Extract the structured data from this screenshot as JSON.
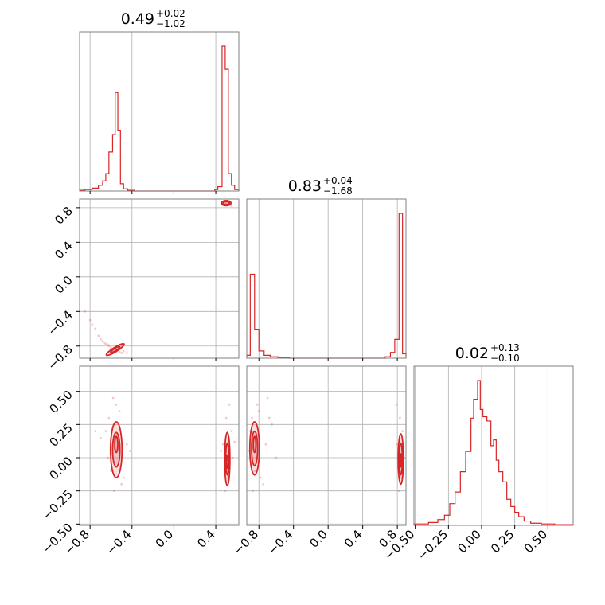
{
  "colors": {
    "accent": "#d62728",
    "grid": "#b0b0b0",
    "frame": "#808080"
  },
  "titles": [
    {
      "value": "0.49",
      "plus": "+0.02",
      "minus": "−1.02"
    },
    {
      "value": "0.83",
      "plus": "+0.04",
      "minus": "−1.68"
    },
    {
      "value": "0.02",
      "plus": "+0.13",
      "minus": "−0.10"
    }
  ],
  "chart_data": {
    "type": "corner",
    "grid": true,
    "parameters": [
      {
        "range": [
          -0.9,
          0.62
        ],
        "ticks": [
          -0.8,
          -0.4,
          0.0,
          0.4
        ],
        "tick_labels": [
          "−0.8",
          "−0.4",
          "0.0",
          "0.4"
        ]
      },
      {
        "range": [
          -0.94,
          0.9
        ],
        "ticks": [
          -0.8,
          -0.4,
          0.0,
          0.4,
          0.8
        ],
        "tick_labels": [
          "−0.8",
          "−0.4",
          "0.0",
          "0.4",
          "0.8"
        ]
      },
      {
        "range": [
          -0.51,
          0.69
        ],
        "ticks": [
          -0.5,
          -0.25,
          0.0,
          0.25,
          0.5
        ],
        "tick_labels": [
          "−0.50",
          "−0.25",
          "0.00",
          "0.25",
          "0.50"
        ]
      }
    ],
    "histograms": [
      {
        "param": 0,
        "bins": [
          {
            "x": [
              -0.9,
              -0.85
            ],
            "h": 0.005
          },
          {
            "x": [
              -0.85,
              -0.78
            ],
            "h": 0.01
          },
          {
            "x": [
              -0.78,
              -0.72
            ],
            "h": 0.02
          },
          {
            "x": [
              -0.72,
              -0.68
            ],
            "h": 0.04
          },
          {
            "x": [
              -0.68,
              -0.65
            ],
            "h": 0.07
          },
          {
            "x": [
              -0.65,
              -0.62
            ],
            "h": 0.12
          },
          {
            "x": [
              -0.62,
              -0.585
            ],
            "h": 0.27
          },
          {
            "x": [
              -0.585,
              -0.56
            ],
            "h": 0.39
          },
          {
            "x": [
              -0.56,
              -0.535
            ],
            "h": 0.68
          },
          {
            "x": [
              -0.535,
              -0.51
            ],
            "h": 0.42
          },
          {
            "x": [
              -0.51,
              -0.48
            ],
            "h": 0.05
          },
          {
            "x": [
              -0.48,
              -0.44
            ],
            "h": 0.015
          },
          {
            "x": [
              -0.44,
              -0.38
            ],
            "h": 0.005
          },
          {
            "x": [
              -0.38,
              0.39
            ],
            "h": 0.0
          },
          {
            "x": [
              0.39,
              0.42
            ],
            "h": 0.01
          },
          {
            "x": [
              0.42,
              0.46
            ],
            "h": 0.03
          },
          {
            "x": [
              0.46,
              0.49
            ],
            "h": 1.0
          },
          {
            "x": [
              0.49,
              0.52
            ],
            "h": 0.84
          },
          {
            "x": [
              0.52,
              0.55
            ],
            "h": 0.12
          },
          {
            "x": [
              0.55,
              0.58
            ],
            "h": 0.04
          },
          {
            "x": [
              0.58,
              0.62
            ],
            "h": 0.01
          }
        ]
      },
      {
        "param": 1,
        "bins": [
          {
            "x": [
              -0.94,
              -0.9
            ],
            "h": 0.02
          },
          {
            "x": [
              -0.9,
              -0.85
            ],
            "h": 0.58
          },
          {
            "x": [
              -0.85,
              -0.8
            ],
            "h": 0.2
          },
          {
            "x": [
              -0.8,
              -0.74
            ],
            "h": 0.05
          },
          {
            "x": [
              -0.74,
              -0.67
            ],
            "h": 0.02
          },
          {
            "x": [
              -0.67,
              -0.58
            ],
            "h": 0.01
          },
          {
            "x": [
              -0.58,
              -0.45
            ],
            "h": 0.005
          },
          {
            "x": [
              -0.45,
              0.66
            ],
            "h": 0.0
          },
          {
            "x": [
              0.66,
              0.72
            ],
            "h": 0.01
          },
          {
            "x": [
              0.72,
              0.77
            ],
            "h": 0.04
          },
          {
            "x": [
              0.77,
              0.82
            ],
            "h": 0.13
          },
          {
            "x": [
              0.82,
              0.86
            ],
            "h": 1.0
          },
          {
            "x": [
              0.86,
              0.9
            ],
            "h": 0.03
          }
        ]
      },
      {
        "param": 2,
        "bins": [
          {
            "x": [
              -0.51,
              -0.4
            ],
            "h": 0.01
          },
          {
            "x": [
              -0.4,
              -0.33
            ],
            "h": 0.02
          },
          {
            "x": [
              -0.33,
              -0.28
            ],
            "h": 0.04
          },
          {
            "x": [
              -0.28,
              -0.24
            ],
            "h": 0.07
          },
          {
            "x": [
              -0.24,
              -0.2
            ],
            "h": 0.15
          },
          {
            "x": [
              -0.2,
              -0.16
            ],
            "h": 0.23
          },
          {
            "x": [
              -0.16,
              -0.12
            ],
            "h": 0.37
          },
          {
            "x": [
              -0.12,
              -0.08
            ],
            "h": 0.51
          },
          {
            "x": [
              -0.08,
              -0.06
            ],
            "h": 0.74
          },
          {
            "x": [
              -0.06,
              -0.03
            ],
            "h": 0.87
          },
          {
            "x": [
              -0.03,
              -0.01
            ],
            "h": 1.0
          },
          {
            "x": [
              -0.01,
              0.01
            ],
            "h": 0.8
          },
          {
            "x": [
              0.01,
              0.04
            ],
            "h": 0.75
          },
          {
            "x": [
              0.04,
              0.07
            ],
            "h": 0.72
          },
          {
            "x": [
              0.07,
              0.09
            ],
            "h": 0.55
          },
          {
            "x": [
              0.09,
              0.11
            ],
            "h": 0.59
          },
          {
            "x": [
              0.11,
              0.13
            ],
            "h": 0.45
          },
          {
            "x": [
              0.13,
              0.16
            ],
            "h": 0.37
          },
          {
            "x": [
              0.16,
              0.19
            ],
            "h": 0.3
          },
          {
            "x": [
              0.19,
              0.22
            ],
            "h": 0.18
          },
          {
            "x": [
              0.22,
              0.25
            ],
            "h": 0.13
          },
          {
            "x": [
              0.25,
              0.28
            ],
            "h": 0.09
          },
          {
            "x": [
              0.28,
              0.32
            ],
            "h": 0.06
          },
          {
            "x": [
              0.32,
              0.37
            ],
            "h": 0.03
          },
          {
            "x": [
              0.37,
              0.45
            ],
            "h": 0.015
          },
          {
            "x": [
              0.45,
              0.55
            ],
            "h": 0.01
          },
          {
            "x": [
              0.55,
              0.69
            ],
            "h": 0.005
          }
        ]
      }
    ],
    "scatter": [
      {
        "px": 0,
        "py": 1,
        "points": [
          [
            0.5,
            0.85
          ],
          [
            0.49,
            0.86
          ],
          [
            0.52,
            0.84
          ],
          [
            0.47,
            0.83
          ],
          [
            0.53,
            0.86
          ],
          [
            0.55,
            0.82
          ],
          [
            0.5,
            0.88
          ],
          [
            0.46,
            0.85
          ],
          [
            -0.55,
            -0.86
          ],
          [
            -0.52,
            -0.87
          ],
          [
            -0.58,
            -0.84
          ],
          [
            -0.6,
            -0.82
          ],
          [
            -0.62,
            -0.8
          ],
          [
            -0.65,
            -0.78
          ],
          [
            -0.68,
            -0.74
          ],
          [
            -0.7,
            -0.72
          ],
          [
            -0.72,
            -0.68
          ],
          [
            -0.75,
            -0.6
          ],
          [
            -0.78,
            -0.55
          ],
          [
            -0.8,
            -0.5
          ],
          [
            -0.85,
            -0.4
          ],
          [
            -0.5,
            -0.88
          ],
          [
            -0.48,
            -0.86
          ],
          [
            -0.45,
            -0.88
          ],
          [
            -0.63,
            -0.78
          ],
          [
            -0.66,
            -0.76
          ],
          [
            -0.57,
            -0.83
          ]
        ],
        "contours": [
          {
            "center": [
              0.5,
              0.853
            ],
            "radii": [
              0.045,
              0.03
            ],
            "angle": 0
          },
          {
            "center": [
              0.5,
              0.853
            ],
            "radii": [
              0.03,
              0.018
            ],
            "angle": 0
          },
          {
            "center": [
              -0.56,
              -0.84
            ],
            "radii": [
              0.1,
              0.025
            ],
            "angle": 32
          },
          {
            "center": [
              -0.56,
              -0.84
            ],
            "radii": [
              0.05,
              0.014
            ],
            "angle": 32
          }
        ]
      },
      {
        "px": 0,
        "py": 2,
        "points": [
          [
            -0.55,
            0.4
          ],
          [
            -0.62,
            0.3
          ],
          [
            -0.5,
            -0.2
          ],
          [
            -0.58,
            0.45
          ],
          [
            -0.65,
            0.2
          ],
          [
            -0.48,
            -0.15
          ],
          [
            -0.6,
            -0.1
          ],
          [
            -0.45,
            0.1
          ],
          [
            -0.7,
            0.15
          ],
          [
            -0.52,
            0.35
          ],
          [
            -0.57,
            -0.25
          ],
          [
            -0.63,
            0.0
          ],
          [
            -0.42,
            0.05
          ],
          [
            -0.75,
            0.2
          ],
          [
            0.5,
            0.3
          ],
          [
            0.52,
            -0.15
          ],
          [
            0.47,
            0.1
          ],
          [
            0.55,
            0.2
          ],
          [
            0.49,
            -0.25
          ],
          [
            0.56,
            0.0
          ],
          [
            0.45,
            0.05
          ],
          [
            0.53,
            0.4
          ],
          [
            0.5,
            -0.1
          ],
          [
            0.58,
            0.12
          ]
        ],
        "contours": [
          {
            "center": [
              -0.55,
              0.06
            ],
            "radii": [
              0.055,
              0.21
            ],
            "angle": 0
          },
          {
            "center": [
              -0.55,
              0.06
            ],
            "radii": [
              0.035,
              0.13
            ],
            "angle": 0
          },
          {
            "center": [
              -0.55,
              0.1
            ],
            "radii": [
              0.015,
              0.06
            ],
            "angle": 0
          },
          {
            "center": [
              0.51,
              -0.01
            ],
            "radii": [
              0.025,
              0.2
            ],
            "angle": 0
          },
          {
            "center": [
              0.51,
              -0.01
            ],
            "radii": [
              0.015,
              0.12
            ],
            "angle": 0
          },
          {
            "center": [
              0.51,
              -0.03
            ],
            "radii": [
              0.008,
              0.05
            ],
            "angle": 0
          }
        ]
      },
      {
        "px": 1,
        "py": 2,
        "points": [
          [
            -0.82,
            0.4
          ],
          [
            -0.88,
            0.3
          ],
          [
            -0.75,
            -0.2
          ],
          [
            -0.7,
            0.45
          ],
          [
            -0.9,
            0.2
          ],
          [
            -0.78,
            -0.15
          ],
          [
            -0.85,
            -0.1
          ],
          [
            -0.72,
            0.1
          ],
          [
            -0.65,
            0.25
          ],
          [
            -0.8,
            0.35
          ],
          [
            -0.87,
            -0.25
          ],
          [
            -0.6,
            0.0
          ],
          [
            -0.68,
            0.3
          ],
          [
            -0.92,
            0.05
          ],
          [
            0.83,
            0.3
          ],
          [
            0.85,
            -0.15
          ],
          [
            0.8,
            0.1
          ],
          [
            0.86,
            0.2
          ],
          [
            0.82,
            -0.25
          ],
          [
            0.88,
            0.0
          ],
          [
            0.79,
            0.4
          ],
          [
            0.84,
            -0.1
          ]
        ],
        "contours": [
          {
            "center": [
              -0.85,
              0.07
            ],
            "radii": [
              0.055,
              0.2
            ],
            "angle": 0
          },
          {
            "center": [
              -0.85,
              0.07
            ],
            "radii": [
              0.035,
              0.13
            ],
            "angle": 0
          },
          {
            "center": [
              -0.85,
              0.1
            ],
            "radii": [
              0.015,
              0.06
            ],
            "angle": 0
          },
          {
            "center": [
              0.84,
              -0.01
            ],
            "radii": [
              0.03,
              0.19
            ],
            "angle": 0
          },
          {
            "center": [
              0.84,
              -0.01
            ],
            "radii": [
              0.018,
              0.12
            ],
            "angle": 0
          },
          {
            "center": [
              0.84,
              -0.02
            ],
            "radii": [
              0.008,
              0.05
            ],
            "angle": 0
          }
        ]
      }
    ]
  }
}
